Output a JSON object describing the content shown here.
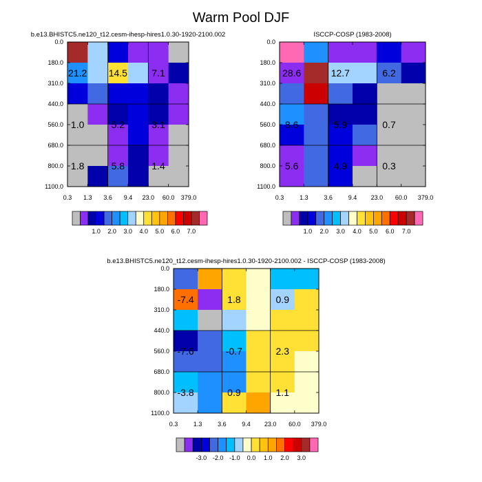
{
  "figure": {
    "title": "Warm Pool DJF"
  },
  "colors": {
    "grey": "#bebebe",
    "bins": [
      "#bebebe",
      "#8c2df2",
      "#0000aa",
      "#0000dd",
      "#4169e1",
      "#1e90ff",
      "#00bfff",
      "#a3d3ff",
      "#ffffcc",
      "#ffe135",
      "#ffc20e",
      "#ffa500",
      "#ff7000",
      "#ff0000",
      "#cc0000",
      "#a52a2a",
      "#ff69b4"
    ]
  },
  "chart_data": [
    {
      "type": "heatmap",
      "title": "b.e13.BHISTC5.ne120_t12.cesm-ihesp-hires1.0.30-1920-2100.002",
      "x_tick_labels": [
        "0.3",
        "1.3",
        "3.6",
        "9.4",
        "23.0",
        "60.0",
        "379.0"
      ],
      "y_tick_labels": [
        "0.0",
        "180.0",
        "310.0",
        "440.0",
        "560.0",
        "680.0",
        "800.0",
        "1100.0"
      ],
      "cell_colors": [
        [
          "#a52a2a",
          "#a3d3ff",
          "#0000dd",
          "#8c2df2",
          "#8c2df2",
          "#bebebe"
        ],
        [
          "#1e90ff",
          "#a3d3ff",
          "#ffe135",
          "#a3d3ff",
          "#8c2df2",
          "#0000aa"
        ],
        [
          "#0000dd",
          "#4169e1",
          "#0000dd",
          "#0000dd",
          "#0000aa",
          "#8c2df2"
        ],
        [
          "#bebebe",
          "#8c2df2",
          "#0000aa",
          "#0000dd",
          "#0000aa",
          "#8c2df2"
        ],
        [
          "#bebebe",
          "#bebebe",
          "#8c2df2",
          "#0000dd",
          "#8c2df2",
          "#bebebe"
        ],
        [
          "#bebebe",
          "#bebebe",
          "#8c2df2",
          "#0000aa",
          "#8c2df2",
          "#bebebe"
        ],
        [
          "#bebebe",
          "#0000aa",
          "#4169e1",
          "#0000aa",
          "#bebebe",
          "#bebebe"
        ]
      ],
      "annotations": [
        {
          "text": "21.2",
          "col": 0.5,
          "row": 1.5
        },
        {
          "text": "14.5",
          "col": 2.5,
          "row": 1.5
        },
        {
          "text": "7.1",
          "col": 4.5,
          "row": 1.5
        },
        {
          "text": "1.0",
          "col": 0.5,
          "row": 4.0
        },
        {
          "text": "5.2",
          "col": 2.5,
          "row": 4.0
        },
        {
          "text": "3.1",
          "col": 4.5,
          "row": 4.0
        },
        {
          "text": "1.8",
          "col": 0.5,
          "row": 6.0
        },
        {
          "text": "5.8",
          "col": 2.5,
          "row": 6.0
        },
        {
          "text": "1.4",
          "col": 4.5,
          "row": 6.0
        }
      ],
      "colorbar": {
        "labels": [
          "1.0",
          "2.0",
          "3.0",
          "4.0",
          "5.0",
          "6.0",
          "7.0"
        ]
      }
    },
    {
      "type": "heatmap",
      "title": "ISCCP-COSP (1983-2008)",
      "x_tick_labels": [
        "0.3",
        "1.3",
        "3.6",
        "9.4",
        "23.0",
        "60.0",
        "379.0"
      ],
      "y_tick_labels": [
        "0.0",
        "180.0",
        "310.0",
        "440.0",
        "560.0",
        "680.0",
        "800.0",
        "1100.0"
      ],
      "cell_colors": [
        [
          "#ff69b4",
          "#1e90ff",
          "#8c2df2",
          "#8c2df2",
          "#0000dd",
          "#8c2df2"
        ],
        [
          "#8c2df2",
          "#a52a2a",
          "#a3d3ff",
          "#a3d3ff",
          "#4169e1",
          "#0000aa"
        ],
        [
          "#4169e1",
          "#cc0000",
          "#4169e1",
          "#0000aa",
          "#bebebe",
          "#bebebe"
        ],
        [
          "#1e90ff",
          "#4169e1",
          "#0000aa",
          "#0000aa",
          "#bebebe",
          "#bebebe"
        ],
        [
          "#0000dd",
          "#4169e1",
          "#0000dd",
          "#4169e1",
          "#bebebe",
          "#bebebe"
        ],
        [
          "#8c2df2",
          "#4169e1",
          "#0000dd",
          "#8c2df2",
          "#bebebe",
          "#bebebe"
        ],
        [
          "#8c2df2",
          "#4169e1",
          "#0000dd",
          "#bebebe",
          "#bebebe",
          "#bebebe"
        ]
      ],
      "annotations": [
        {
          "text": "28.6",
          "col": 0.5,
          "row": 1.5
        },
        {
          "text": "12.7",
          "col": 2.5,
          "row": 1.5
        },
        {
          "text": "6.2",
          "col": 4.5,
          "row": 1.5
        },
        {
          "text": "8.6",
          "col": 0.5,
          "row": 4.0
        },
        {
          "text": "5.9",
          "col": 2.5,
          "row": 4.0
        },
        {
          "text": "0.7",
          "col": 4.5,
          "row": 4.0
        },
        {
          "text": "5.6",
          "col": 0.5,
          "row": 6.0
        },
        {
          "text": "4.9",
          "col": 2.5,
          "row": 6.0
        },
        {
          "text": "0.3",
          "col": 4.5,
          "row": 6.0
        }
      ],
      "colorbar": {
        "labels": [
          "1.0",
          "2.0",
          "3.0",
          "4.0",
          "5.0",
          "6.0",
          "7.0"
        ]
      }
    },
    {
      "type": "heatmap",
      "title": "b.e13.BHISTC5.ne120_t12.cesm-ihesp-hires1.0.30-1920-2100.002 - ISCCP-COSP (1983-2008)",
      "x_tick_labels": [
        "0.3",
        "1.3",
        "3.6",
        "9.4",
        "23.0",
        "60.0",
        "379.0"
      ],
      "y_tick_labels": [
        "0.0",
        "180.0",
        "310.0",
        "440.0",
        "560.0",
        "680.0",
        "800.0",
        "1100.0"
      ],
      "cell_colors": [
        [
          "#4169e1",
          "#ffa500",
          "#ffe135",
          "#ffffcc",
          "#00bfff",
          "#00bfff"
        ],
        [
          "#ff7000",
          "#8c2df2",
          "#ffe135",
          "#ffffcc",
          "#a3d3ff",
          "#ffe135"
        ],
        [
          "#00bfff",
          "#bebebe",
          "#a3d3ff",
          "#ffffcc",
          "#ffe135",
          "#ffe135"
        ],
        [
          "#0000aa",
          "#4169e1",
          "#00bfff",
          "#ffe135",
          "#ffe135",
          "#ffe135"
        ],
        [
          "#4169e1",
          "#4169e1",
          "#1e90ff",
          "#ffe135",
          "#ffe135",
          "#ffffcc"
        ],
        [
          "#00bfff",
          "#1e90ff",
          "#1e90ff",
          "#ffe135",
          "#ffe135",
          "#ffffcc"
        ],
        [
          "#a3d3ff",
          "#1e90ff",
          "#ffe135",
          "#ffa500",
          "#ffffcc",
          "#ffffcc"
        ]
      ],
      "annotations": [
        {
          "text": "-7.4",
          "col": 0.5,
          "row": 1.5
        },
        {
          "text": "1.8",
          "col": 2.5,
          "row": 1.5
        },
        {
          "text": "0.9",
          "col": 4.5,
          "row": 1.5
        },
        {
          "text": "-7.6",
          "col": 0.5,
          "row": 4.0
        },
        {
          "text": "-0.7",
          "col": 2.5,
          "row": 4.0
        },
        {
          "text": "2.3",
          "col": 4.5,
          "row": 4.0
        },
        {
          "text": "-3.8",
          "col": 0.5,
          "row": 6.0
        },
        {
          "text": "0.9",
          "col": 2.5,
          "row": 6.0
        },
        {
          "text": "1.1",
          "col": 4.5,
          "row": 6.0
        }
      ],
      "colorbar": {
        "labels": [
          "-3.0",
          "-2.0",
          "-1.0",
          "0.0",
          "1.0",
          "2.0",
          "3.0"
        ]
      }
    }
  ]
}
